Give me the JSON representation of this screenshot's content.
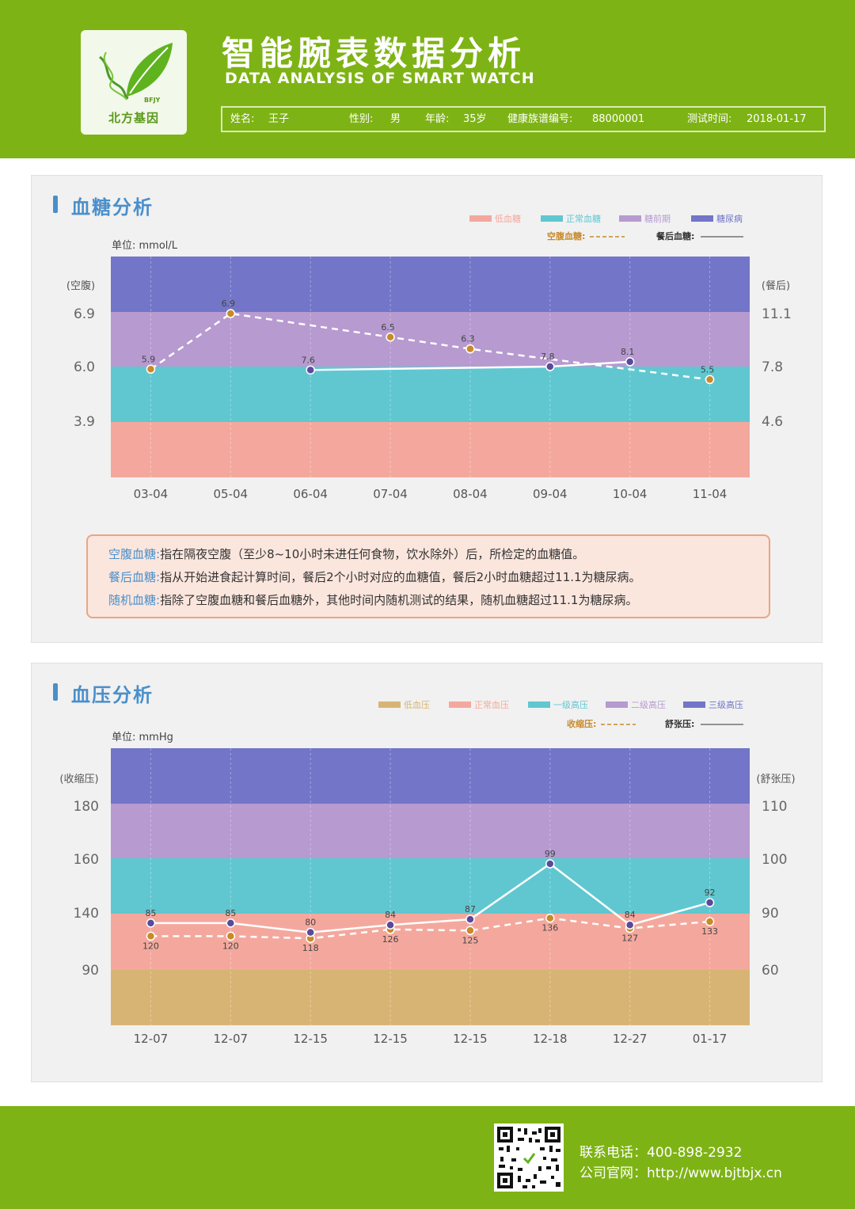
{
  "header": {
    "logo_text": "北方基因",
    "logo_sub": "BFJY",
    "title": "智能腕表数据分析",
    "subtitle": "DATA ANALYSIS OF SMART WATCH",
    "info": {
      "name_label": "姓名:",
      "name_value": "王子",
      "gender_label": "性别:",
      "gender_value": "男",
      "age_label": "年龄:",
      "age_value": "35岁",
      "id_label": "健康族谱编号:",
      "id_value": "88000001",
      "date_label": "测试时间:",
      "date_value": "2018-01-17"
    }
  },
  "glucose": {
    "section_title": "血糖分析",
    "unit": "单位: mmol/L",
    "legend": [
      {
        "label": "低血糖",
        "color": "#f4a89d"
      },
      {
        "label": "正常血糖",
        "color": "#60c7d0"
      },
      {
        "label": "糖前期",
        "color": "#b69ad0"
      },
      {
        "label": "糖尿病",
        "color": "#7275c8"
      }
    ],
    "line_legend": {
      "dashed_label": "空腹血糖:",
      "solid_label": "餐后血糖:"
    },
    "notes": [
      {
        "term": "空腹血糖:",
        "text": "指在隔夜空腹（至少8~10小时未进任何食物，饮水除外）后，所检定的血糖值。"
      },
      {
        "term": "餐后血糖:",
        "text": "指从开始进食起计算时间，餐后2个小时对应的血糖值，餐后2小时血糖超过11.1为糖尿病。"
      },
      {
        "term": "随机血糖:",
        "text": "指除了空腹血糖和餐后血糖外，其他时间内随机测试的结果，随机血糖超过11.1为糖尿病。"
      }
    ]
  },
  "pressure": {
    "section_title": "血压分析",
    "unit": "单位: mmHg",
    "legend": [
      {
        "label": "低血压",
        "color": "#d8b474"
      },
      {
        "label": "正常血压",
        "color": "#f4a89d"
      },
      {
        "label": "一级高压",
        "color": "#60c7d0"
      },
      {
        "label": "二级高压",
        "color": "#b69ad0"
      },
      {
        "label": "三级高压",
        "color": "#7275c8"
      }
    ],
    "line_legend": {
      "dashed_label": "收缩压:",
      "solid_label": "舒张压:"
    }
  },
  "chart_data": [
    {
      "type": "line",
      "categories": [
        "03-04",
        "05-04",
        "06-04",
        "07-04",
        "08-04",
        "09-04",
        "10-04",
        "11-04"
      ],
      "left_axis": {
        "title": "(空腹)",
        "ticks": [
          "6.9",
          "6.0",
          "3.9"
        ]
      },
      "right_axis": {
        "title": "(餐后)",
        "ticks": [
          "11.1",
          "7.8",
          "4.6"
        ]
      },
      "bands": [
        {
          "name": "低血糖",
          "color": "#f4a89d"
        },
        {
          "name": "正常血糖",
          "color": "#60c7d0"
        },
        {
          "name": "糖前期",
          "color": "#b69ad0"
        },
        {
          "name": "糖尿病",
          "color": "#7275c8"
        }
      ],
      "series": [
        {
          "name": "空腹血糖",
          "style": "dashed",
          "axis": "left",
          "marker_color": "#c88a2a",
          "points": [
            {
              "x": "03-04",
              "y": 5.9
            },
            {
              "x": "05-04",
              "y": 6.9
            },
            {
              "x": "07-04",
              "y": 6.5
            },
            {
              "x": "08-04",
              "y": 6.3
            },
            {
              "x": "11-04",
              "y": 5.5
            }
          ]
        },
        {
          "name": "餐后血糖",
          "style": "solid",
          "axis": "right",
          "marker_color": "#5a4a9a",
          "points": [
            {
              "x": "06-04",
              "y": 7.6
            },
            {
              "x": "09-04",
              "y": 7.8
            },
            {
              "x": "10-04",
              "y": 8.1
            }
          ]
        }
      ]
    },
    {
      "type": "line",
      "categories": [
        "12-07",
        "12-07",
        "12-15",
        "12-15",
        "12-15",
        "12-18",
        "12-27",
        "01-17"
      ],
      "left_axis": {
        "title": "(收缩压)",
        "ticks": [
          "180",
          "160",
          "140",
          "90"
        ]
      },
      "right_axis": {
        "title": "(舒张压)",
        "ticks": [
          "110",
          "100",
          "90",
          "60"
        ]
      },
      "bands": [
        {
          "name": "低血压",
          "color": "#d8b474"
        },
        {
          "name": "正常血压",
          "color": "#f4a89d"
        },
        {
          "name": "一级高压",
          "color": "#60c7d0"
        },
        {
          "name": "二级高压",
          "color": "#b69ad0"
        },
        {
          "name": "三级高压",
          "color": "#7275c8"
        }
      ],
      "series": [
        {
          "name": "收缩压",
          "style": "dashed",
          "axis": "left",
          "marker_color": "#c88a2a",
          "values": [
            120,
            120,
            118,
            126,
            125,
            136,
            127,
            133
          ]
        },
        {
          "name": "舒张压",
          "style": "solid",
          "axis": "right",
          "marker_color": "#5a4a9a",
          "values": [
            85,
            85,
            80,
            84,
            87,
            99,
            84,
            92
          ]
        }
      ]
    }
  ],
  "footer": {
    "phone": "联系电话：400-898-2932",
    "website": "公司官网：http://www.bjtbjx.cn"
  }
}
